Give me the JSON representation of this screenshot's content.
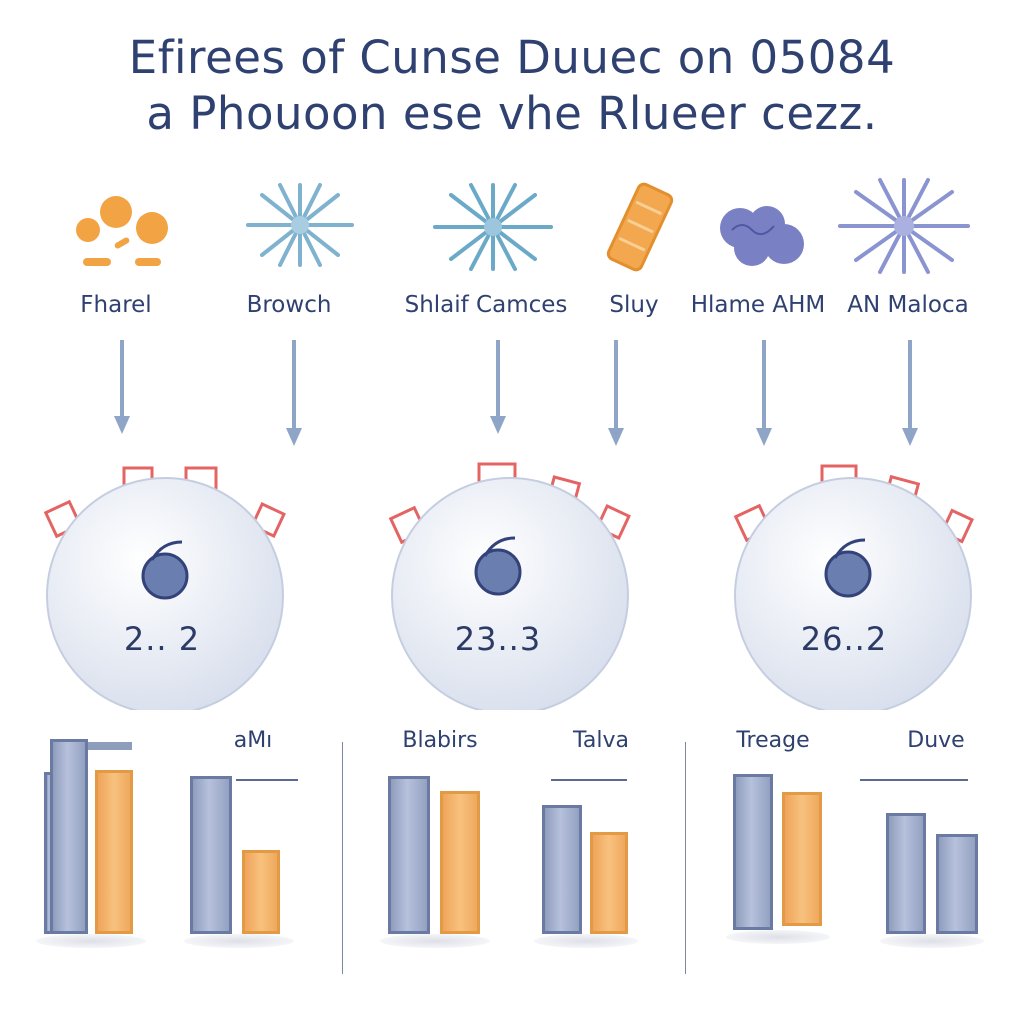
{
  "title": {
    "line1": "Efirees of Cunse Duuec on 05084",
    "line2": "a Phouoon ese vhe Rlueer cezz."
  },
  "items": [
    {
      "label": "Fharel",
      "icon": "dots-icon",
      "color": "#f2a444"
    },
    {
      "label": "Browch",
      "icon": "burst-icon",
      "color": "#7fb2cf"
    },
    {
      "label": "Shlaif Camces",
      "icon": "burst-icon",
      "color": "#6aa9c8"
    },
    {
      "label": "Sluy",
      "icon": "tablet-icon",
      "color": "#f2a444"
    },
    {
      "label": "Hlame AHM",
      "icon": "cloud-icon",
      "color": "#7a80c4"
    },
    {
      "label": "AN Maloca",
      "icon": "burst-icon",
      "color": "#8a94d0"
    }
  ],
  "hubs": [
    {
      "value": "2.. 2"
    },
    {
      "value": "23..3"
    },
    {
      "value": "26..2"
    }
  ],
  "groups": [
    {
      "label": "aMı",
      "values": [
        1.0,
        0.85
      ]
    },
    {
      "label": "Blabirs",
      "values": [
        1.0,
        0.9
      ]
    },
    {
      "label": "Talva",
      "values": [
        0.82,
        0.65
      ]
    },
    {
      "label": "Treage",
      "values": [
        1.0,
        0.85
      ]
    },
    {
      "label": "Duve",
      "values": [
        0.75,
        0.62
      ]
    }
  ],
  "colors": {
    "text": "#2f4170",
    "bar_blue": "#a9b4cf",
    "bar_orange": "#f3b266",
    "hub_tab": "#e46464"
  }
}
